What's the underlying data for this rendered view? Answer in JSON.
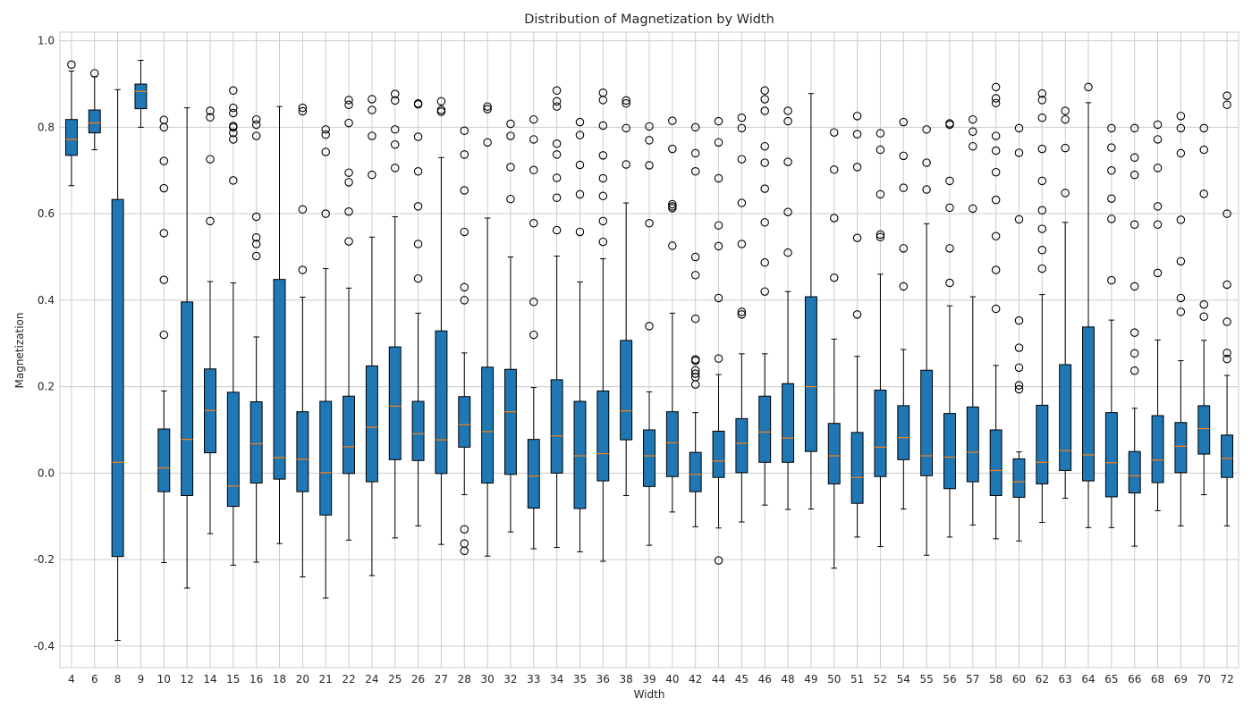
{
  "chart_data": {
    "type": "boxplot",
    "title": "Distribution of Magnetization by Width",
    "xlabel": "Width",
    "ylabel": "Magnetization",
    "ylim": [
      -0.45,
      1.02
    ],
    "yticks": [
      -0.4,
      -0.2,
      0.0,
      0.2,
      0.4,
      0.6,
      0.8,
      1.0
    ],
    "grid": true,
    "colors": {
      "box": "#1f77b4",
      "median": "#ff7f0e",
      "edge": "#000000",
      "grid": "#cccccc"
    },
    "boxes": [
      {
        "label": "4",
        "whislo": 0.665,
        "q1": 0.735,
        "med": 0.772,
        "q3": 0.818,
        "whishi": 0.93,
        "fliers": [
          0.945
        ]
      },
      {
        "label": "6",
        "whislo": 0.748,
        "q1": 0.787,
        "med": 0.81,
        "q3": 0.84,
        "whishi": 0.917,
        "fliers": [
          0.925
        ]
      },
      {
        "label": "8",
        "whislo": -0.387,
        "q1": -0.193,
        "med": 0.025,
        "q3": 0.633,
        "whishi": 0.887,
        "fliers": []
      },
      {
        "label": "9",
        "whislo": 0.8,
        "q1": 0.843,
        "med": 0.883,
        "q3": 0.9,
        "whishi": 0.955,
        "fliers": []
      },
      {
        "label": "10",
        "whislo": -0.207,
        "q1": -0.043,
        "med": 0.012,
        "q3": 0.102,
        "whishi": 0.19,
        "fliers": [
          0.32,
          0.447,
          0.555,
          0.659,
          0.722,
          0.8,
          0.817
        ]
      },
      {
        "label": "12",
        "whislo": -0.266,
        "q1": -0.052,
        "med": 0.078,
        "q3": 0.396,
        "whishi": 0.845,
        "fliers": []
      },
      {
        "label": "14",
        "whislo": -0.14,
        "q1": 0.047,
        "med": 0.145,
        "q3": 0.241,
        "whishi": 0.443,
        "fliers": [
          0.583,
          0.726,
          0.823,
          0.838
        ]
      },
      {
        "label": "15",
        "whislo": -0.213,
        "q1": -0.077,
        "med": -0.03,
        "q3": 0.187,
        "whishi": 0.44,
        "fliers": [
          0.677,
          0.772,
          0.787,
          0.8,
          0.803,
          0.833,
          0.845,
          0.885
        ]
      },
      {
        "label": "16",
        "whislo": -0.206,
        "q1": -0.023,
        "med": 0.068,
        "q3": 0.165,
        "whishi": 0.315,
        "fliers": [
          0.502,
          0.53,
          0.545,
          0.593,
          0.78,
          0.806,
          0.818
        ]
      },
      {
        "label": "18",
        "whislo": -0.163,
        "q1": -0.014,
        "med": 0.036,
        "q3": 0.448,
        "whishi": 0.848,
        "fliers": []
      },
      {
        "label": "20",
        "whislo": -0.24,
        "q1": -0.043,
        "med": 0.032,
        "q3": 0.142,
        "whishi": 0.407,
        "fliers": [
          0.47,
          0.61,
          0.837,
          0.845
        ]
      },
      {
        "label": "21",
        "whislo": -0.289,
        "q1": -0.097,
        "med": 0.001,
        "q3": 0.166,
        "whishi": 0.473,
        "fliers": [
          0.6,
          0.743,
          0.783,
          0.795
        ]
      },
      {
        "label": "22",
        "whislo": -0.155,
        "q1": -0.001,
        "med": 0.061,
        "q3": 0.178,
        "whishi": 0.428,
        "fliers": [
          0.536,
          0.605,
          0.673,
          0.695,
          0.81,
          0.852,
          0.863
        ]
      },
      {
        "label": "24",
        "whislo": -0.237,
        "q1": -0.02,
        "med": 0.106,
        "q3": 0.248,
        "whishi": 0.546,
        "fliers": [
          0.69,
          0.78,
          0.84,
          0.865
        ]
      },
      {
        "label": "25",
        "whislo": -0.15,
        "q1": 0.031,
        "med": 0.155,
        "q3": 0.292,
        "whishi": 0.593,
        "fliers": [
          0.706,
          0.76,
          0.795,
          0.862,
          0.877
        ]
      },
      {
        "label": "26",
        "whislo": -0.122,
        "q1": 0.029,
        "med": 0.091,
        "q3": 0.166,
        "whishi": 0.37,
        "fliers": [
          0.45,
          0.53,
          0.617,
          0.698,
          0.778,
          0.853,
          0.855
        ]
      },
      {
        "label": "27",
        "whislo": -0.165,
        "q1": -0.001,
        "med": 0.077,
        "q3": 0.329,
        "whishi": 0.73,
        "fliers": [
          0.836,
          0.84,
          0.86
        ]
      },
      {
        "label": "28",
        "whislo": -0.05,
        "q1": 0.06,
        "med": 0.112,
        "q3": 0.177,
        "whishi": 0.278,
        "fliers": [
          -0.18,
          -0.163,
          -0.13,
          0.4,
          0.43,
          0.558,
          0.654,
          0.737,
          0.792
        ]
      },
      {
        "label": "30",
        "whislo": -0.192,
        "q1": -0.023,
        "med": 0.096,
        "q3": 0.245,
        "whishi": 0.59,
        "fliers": [
          0.765,
          0.842,
          0.848
        ]
      },
      {
        "label": "32",
        "whislo": -0.136,
        "q1": -0.003,
        "med": 0.142,
        "q3": 0.24,
        "whishi": 0.5,
        "fliers": [
          0.634,
          0.708,
          0.78,
          0.808
        ]
      },
      {
        "label": "33",
        "whislo": -0.175,
        "q1": -0.081,
        "med": -0.007,
        "q3": 0.078,
        "whishi": 0.198,
        "fliers": [
          0.32,
          0.396,
          0.578,
          0.701,
          0.772,
          0.818
        ]
      },
      {
        "label": "34",
        "whislo": -0.172,
        "q1": 0.0,
        "med": 0.086,
        "q3": 0.216,
        "whishi": 0.502,
        "fliers": [
          0.562,
          0.637,
          0.683,
          0.737,
          0.762,
          0.848,
          0.86,
          0.885
        ]
      },
      {
        "label": "35",
        "whislo": -0.182,
        "q1": -0.082,
        "med": 0.04,
        "q3": 0.166,
        "whishi": 0.442,
        "fliers": [
          0.558,
          0.645,
          0.713,
          0.782,
          0.812
        ]
      },
      {
        "label": "36",
        "whislo": -0.204,
        "q1": -0.018,
        "med": 0.045,
        "q3": 0.19,
        "whishi": 0.496,
        "fliers": [
          0.535,
          0.583,
          0.641,
          0.682,
          0.735,
          0.804,
          0.863,
          0.88
        ]
      },
      {
        "label": "38",
        "whislo": -0.052,
        "q1": 0.077,
        "med": 0.144,
        "q3": 0.307,
        "whishi": 0.625,
        "fliers": [
          0.714,
          0.798,
          0.855,
          0.862
        ]
      },
      {
        "label": "39",
        "whislo": -0.167,
        "q1": -0.031,
        "med": 0.04,
        "q3": 0.1,
        "whishi": 0.188,
        "fliers": [
          0.34,
          0.578,
          0.712,
          0.77,
          0.802
        ]
      },
      {
        "label": "40",
        "whislo": -0.09,
        "q1": -0.008,
        "med": 0.07,
        "q3": 0.142,
        "whishi": 0.37,
        "fliers": [
          0.526,
          0.613,
          0.617,
          0.622,
          0.75,
          0.815
        ]
      },
      {
        "label": "42",
        "whislo": -0.124,
        "q1": -0.043,
        "med": -0.003,
        "q3": 0.048,
        "whishi": 0.14,
        "fliers": [
          0.205,
          0.222,
          0.23,
          0.238,
          0.26,
          0.263,
          0.357,
          0.458,
          0.5,
          0.698,
          0.74,
          0.8
        ]
      },
      {
        "label": "44",
        "whislo": -0.127,
        "q1": -0.01,
        "med": 0.028,
        "q3": 0.097,
        "whishi": 0.228,
        "fliers": [
          -0.202,
          0.265,
          0.405,
          0.525,
          0.573,
          0.682,
          0.765,
          0.814
        ]
      },
      {
        "label": "45",
        "whislo": -0.113,
        "q1": 0.001,
        "med": 0.069,
        "q3": 0.126,
        "whishi": 0.276,
        "fliers": [
          0.367,
          0.373,
          0.53,
          0.625,
          0.726,
          0.798,
          0.822
        ]
      },
      {
        "label": "46",
        "whislo": -0.074,
        "q1": 0.025,
        "med": 0.095,
        "q3": 0.178,
        "whishi": 0.276,
        "fliers": [
          0.42,
          0.487,
          0.58,
          0.658,
          0.718,
          0.756,
          0.838,
          0.865,
          0.885
        ]
      },
      {
        "label": "48",
        "whislo": -0.084,
        "q1": 0.025,
        "med": 0.081,
        "q3": 0.207,
        "whishi": 0.42,
        "fliers": [
          0.51,
          0.604,
          0.72,
          0.814,
          0.838
        ]
      },
      {
        "label": "49",
        "whislo": -0.083,
        "q1": 0.05,
        "med": 0.2,
        "q3": 0.408,
        "whishi": 0.878,
        "fliers": []
      },
      {
        "label": "50",
        "whislo": -0.22,
        "q1": -0.025,
        "med": 0.04,
        "q3": 0.115,
        "whishi": 0.31,
        "fliers": [
          0.452,
          0.59,
          0.702,
          0.788
        ]
      },
      {
        "label": "51",
        "whislo": -0.148,
        "q1": -0.07,
        "med": -0.01,
        "q3": 0.094,
        "whishi": 0.27,
        "fliers": [
          0.367,
          0.544,
          0.708,
          0.784,
          0.826
        ]
      },
      {
        "label": "52",
        "whislo": -0.17,
        "q1": -0.008,
        "med": 0.06,
        "q3": 0.192,
        "whishi": 0.46,
        "fliers": [
          0.546,
          0.552,
          0.645,
          0.748,
          0.786
        ]
      },
      {
        "label": "54",
        "whislo": -0.083,
        "q1": 0.031,
        "med": 0.082,
        "q3": 0.156,
        "whishi": 0.286,
        "fliers": [
          0.432,
          0.52,
          0.66,
          0.734,
          0.812
        ]
      },
      {
        "label": "55",
        "whislo": -0.19,
        "q1": -0.006,
        "med": 0.04,
        "q3": 0.238,
        "whishi": 0.577,
        "fliers": [
          0.656,
          0.718,
          0.795
        ]
      },
      {
        "label": "56",
        "whislo": -0.148,
        "q1": -0.036,
        "med": 0.037,
        "q3": 0.138,
        "whishi": 0.387,
        "fliers": [
          0.44,
          0.52,
          0.614,
          0.676,
          0.806,
          0.809
        ]
      },
      {
        "label": "57",
        "whislo": -0.12,
        "q1": -0.02,
        "med": 0.048,
        "q3": 0.153,
        "whishi": 0.408,
        "fliers": [
          0.612,
          0.756,
          0.79,
          0.818
        ]
      },
      {
        "label": "58",
        "whislo": -0.152,
        "q1": -0.052,
        "med": 0.006,
        "q3": 0.1,
        "whishi": 0.249,
        "fliers": [
          0.38,
          0.47,
          0.548,
          0.632,
          0.696,
          0.746,
          0.78,
          0.856,
          0.867,
          0.893
        ]
      },
      {
        "label": "60",
        "whislo": -0.157,
        "q1": -0.056,
        "med": -0.02,
        "q3": 0.033,
        "whishi": 0.049,
        "fliers": [
          0.194,
          0.203,
          0.244,
          0.29,
          0.353,
          0.587,
          0.741,
          0.798
        ]
      },
      {
        "label": "62",
        "whislo": -0.114,
        "q1": -0.025,
        "med": 0.025,
        "q3": 0.157,
        "whishi": 0.413,
        "fliers": [
          0.473,
          0.516,
          0.565,
          0.608,
          0.676,
          0.75,
          0.822,
          0.863,
          0.878
        ]
      },
      {
        "label": "63",
        "whislo": -0.058,
        "q1": 0.006,
        "med": 0.052,
        "q3": 0.251,
        "whishi": 0.58,
        "fliers": [
          0.648,
          0.752,
          0.818,
          0.838
        ]
      },
      {
        "label": "64",
        "whislo": -0.126,
        "q1": -0.018,
        "med": 0.042,
        "q3": 0.338,
        "whishi": 0.857,
        "fliers": [
          0.893
        ]
      },
      {
        "label": "65",
        "whislo": -0.126,
        "q1": -0.055,
        "med": 0.024,
        "q3": 0.14,
        "whishi": 0.354,
        "fliers": [
          0.446,
          0.588,
          0.635,
          0.7,
          0.753,
          0.798
        ]
      },
      {
        "label": "66",
        "whislo": -0.169,
        "q1": -0.046,
        "med": -0.006,
        "q3": 0.05,
        "whishi": 0.15,
        "fliers": [
          0.237,
          0.277,
          0.325,
          0.432,
          0.575,
          0.69,
          0.73,
          0.798
        ]
      },
      {
        "label": "68",
        "whislo": -0.087,
        "q1": -0.022,
        "med": 0.03,
        "q3": 0.133,
        "whishi": 0.308,
        "fliers": [
          0.463,
          0.575,
          0.617,
          0.706,
          0.772,
          0.806
        ]
      },
      {
        "label": "69",
        "whislo": -0.122,
        "q1": 0.001,
        "med": 0.062,
        "q3": 0.117,
        "whishi": 0.26,
        "fliers": [
          0.373,
          0.405,
          0.49,
          0.586,
          0.74,
          0.798,
          0.826
        ]
      },
      {
        "label": "70",
        "whislo": -0.05,
        "q1": 0.044,
        "med": 0.103,
        "q3": 0.156,
        "whishi": 0.307,
        "fliers": [
          0.362,
          0.39,
          0.646,
          0.748,
          0.798
        ]
      },
      {
        "label": "72",
        "whislo": -0.122,
        "q1": -0.01,
        "med": 0.034,
        "q3": 0.088,
        "whishi": 0.226,
        "fliers": [
          0.264,
          0.278,
          0.35,
          0.436,
          0.6,
          0.852,
          0.873
        ]
      }
    ]
  }
}
